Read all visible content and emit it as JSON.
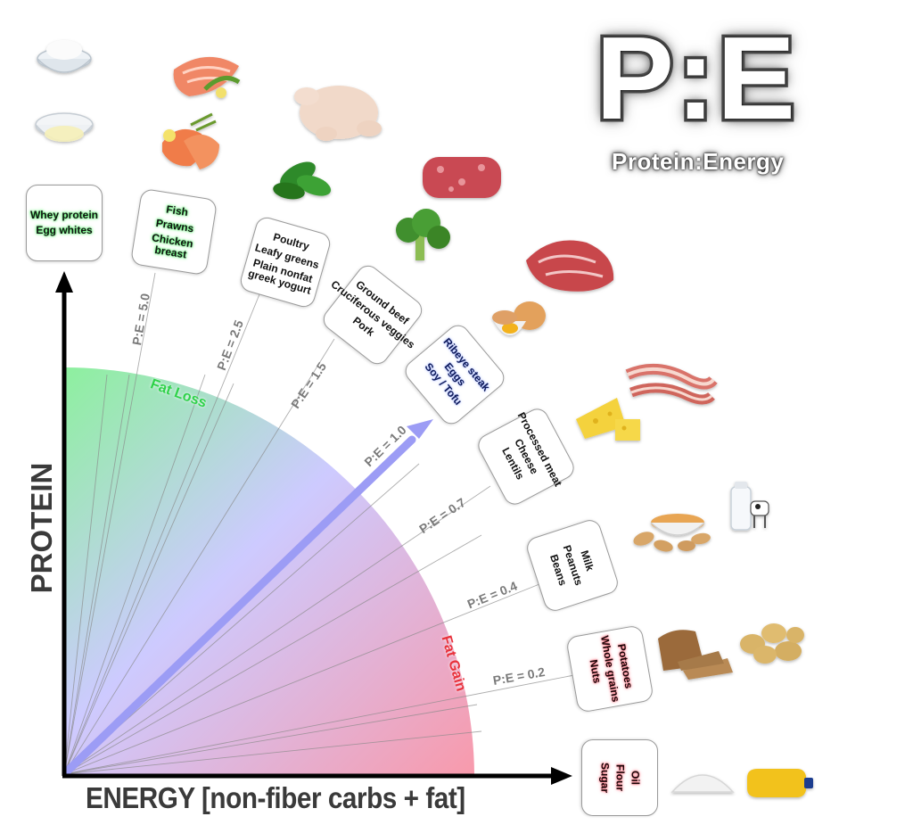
{
  "title": {
    "main": "P:E",
    "subtitle": "Protein:Energy"
  },
  "axes": {
    "x_label": "ENERGY [non-fiber carbs + fat]",
    "y_label": "PROTEIN"
  },
  "zones": {
    "fat_loss": "Fat Loss",
    "fat_gain": "Fat Gain"
  },
  "colors": {
    "fat_loss": "#5be86a",
    "mid": "#b3b0ff",
    "fat_gain": "#f07a8a",
    "arrow": "#9c9cf5",
    "axis": "#000000"
  },
  "groups": [
    {
      "id": "whey",
      "items": [
        "Whey protein",
        "Egg whites"
      ],
      "glow": "green",
      "icons": [
        "flour-bowl-icon",
        "egg-white-bowl-icon"
      ]
    },
    {
      "id": "fish",
      "items": [
        "Fish",
        "Prawns",
        "Chicken breast"
      ],
      "glow": "green",
      "ratio_label": "P:E = 5.0",
      "icons": [
        "salmon-icon",
        "prawns-icon"
      ]
    },
    {
      "id": "poultry",
      "items": [
        "Poultry",
        "Leafy greens",
        "Plain nonfat greek yogurt"
      ],
      "glow": "none",
      "ratio_label": "P:E = 2.5",
      "icons": [
        "whole-chicken-icon",
        "spinach-icon"
      ]
    },
    {
      "id": "groundbeef",
      "items": [
        "Ground beef",
        "Cruciferous veggies",
        "Pork"
      ],
      "glow": "none",
      "ratio_label": "P:E = 1.5",
      "icons": [
        "ground-beef-icon",
        "broccoli-icon"
      ]
    },
    {
      "id": "ribeye",
      "items": [
        "Ribeye steak",
        "Eggs",
        "Soy / Tofu"
      ],
      "glow": "blue",
      "ratio_label": "P:E = 1.0",
      "icons": [
        "steak-icon",
        "eggs-icon"
      ]
    },
    {
      "id": "processed",
      "items": [
        "Processed meat",
        "Cheese",
        "Lentils"
      ],
      "glow": "none",
      "ratio_label": "P:E = 0.7",
      "icons": [
        "bacon-icon",
        "cheese-icon"
      ]
    },
    {
      "id": "milk",
      "items": [
        "Milk",
        "Peanuts",
        "Beans"
      ],
      "glow": "none",
      "ratio_label": "P:E = 0.4",
      "icons": [
        "peanut-butter-icon",
        "milk-cow-icon"
      ]
    },
    {
      "id": "potatoes",
      "items": [
        "Potatoes",
        "Whole grains",
        "Nuts"
      ],
      "glow": "red",
      "ratio_label": "P:E = 0.2",
      "icons": [
        "bread-icon",
        "potatoes-icon"
      ]
    },
    {
      "id": "oil",
      "items": [
        "Oil",
        "Flour",
        "Sugar"
      ],
      "glow": "red",
      "icons": [
        "flour-pile-icon",
        "oil-bottle-icon"
      ]
    }
  ]
}
